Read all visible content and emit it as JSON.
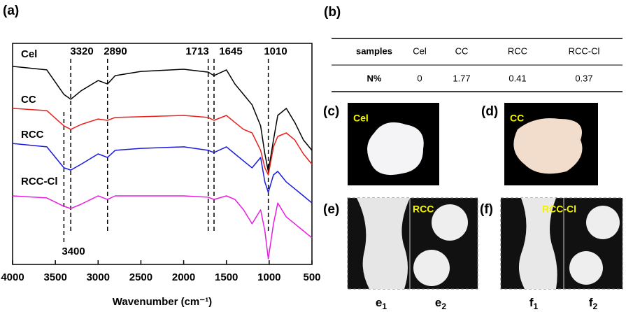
{
  "chart_data": {
    "type": "line",
    "panel_label": "(a)",
    "x_label": "Wavenumber (cm⁻¹)",
    "xlim": [
      4000,
      500
    ],
    "xticks": [
      4000,
      3500,
      3000,
      2500,
      2000,
      1500,
      1000,
      500
    ],
    "ylim": [
      0,
      100
    ],
    "peaks": [
      3320,
      2890,
      1713,
      1645,
      1010,
      3400
    ],
    "x": [
      4000,
      3600,
      3400,
      3320,
      3200,
      3000,
      2890,
      2800,
      2500,
      2000,
      1713,
      1645,
      1500,
      1400,
      1300,
      1200,
      1100,
      1050,
      1010,
      950,
      900,
      800,
      700,
      600,
      500
    ],
    "series": [
      {
        "name": "Cel",
        "color": "#000000",
        "values": [
          89.6,
          88.0,
          76.9,
          74.7,
          78.5,
          83.2,
          81.6,
          85.4,
          87.3,
          88.3,
          87.0,
          85.4,
          88.0,
          81.6,
          76.9,
          72.2,
          62.7,
          50.0,
          42.1,
          56.3,
          67.4,
          70.6,
          64.2,
          56.3,
          51.6
        ]
      },
      {
        "name": "CC",
        "color": "#e8201c",
        "values": [
          70.6,
          69.6,
          62.7,
          61.1,
          63.3,
          65.8,
          65.2,
          66.5,
          66.8,
          67.4,
          66.5,
          65.2,
          67.4,
          64.2,
          61.1,
          59.5,
          51.6,
          43.7,
          40.5,
          53.2,
          57.9,
          59.5,
          56.3,
          50.0,
          45.3
        ]
      },
      {
        "name": "RCC",
        "color": "#1a1adc",
        "values": [
          54.7,
          53.2,
          43.7,
          42.7,
          45.3,
          50.0,
          48.4,
          51.6,
          52.5,
          53.2,
          51.6,
          50.6,
          53.2,
          50.0,
          46.8,
          43.7,
          48.4,
          37.3,
          32.6,
          40.5,
          42.1,
          37.3,
          34.2,
          31.0,
          27.8
        ]
      },
      {
        "name": "RCC-Cl",
        "color": "#e81ee0",
        "values": [
          31.0,
          30.1,
          26.3,
          25.3,
          27.2,
          31.0,
          29.4,
          31.0,
          31.0,
          31.0,
          30.4,
          29.4,
          31.0,
          29.4,
          24.7,
          18.4,
          24.7,
          15.2,
          2.5,
          18.4,
          27.8,
          21.5,
          18.4,
          15.2,
          12.0
        ]
      }
    ]
  },
  "table": {
    "panel_label": "(b)",
    "header": [
      "samples",
      "Cel",
      "CC",
      "RCC",
      "RCC-Cl"
    ],
    "rows": [
      [
        "N%",
        "0",
        "1.77",
        "0.41",
        "0.37"
      ]
    ]
  },
  "photos": [
    {
      "panel_label": "(c)",
      "tag": "Cel"
    },
    {
      "panel_label": "(d)",
      "tag": "CC"
    },
    {
      "panel_label": "(e)",
      "tag": "RCC",
      "parts": [
        {
          "base": "e",
          "sub": "1"
        },
        {
          "base": "e",
          "sub": "2"
        }
      ]
    },
    {
      "panel_label": "(f)",
      "tag": "RCC-Cl",
      "parts": [
        {
          "base": "f",
          "sub": "1"
        },
        {
          "base": "f",
          "sub": "2"
        }
      ]
    }
  ]
}
